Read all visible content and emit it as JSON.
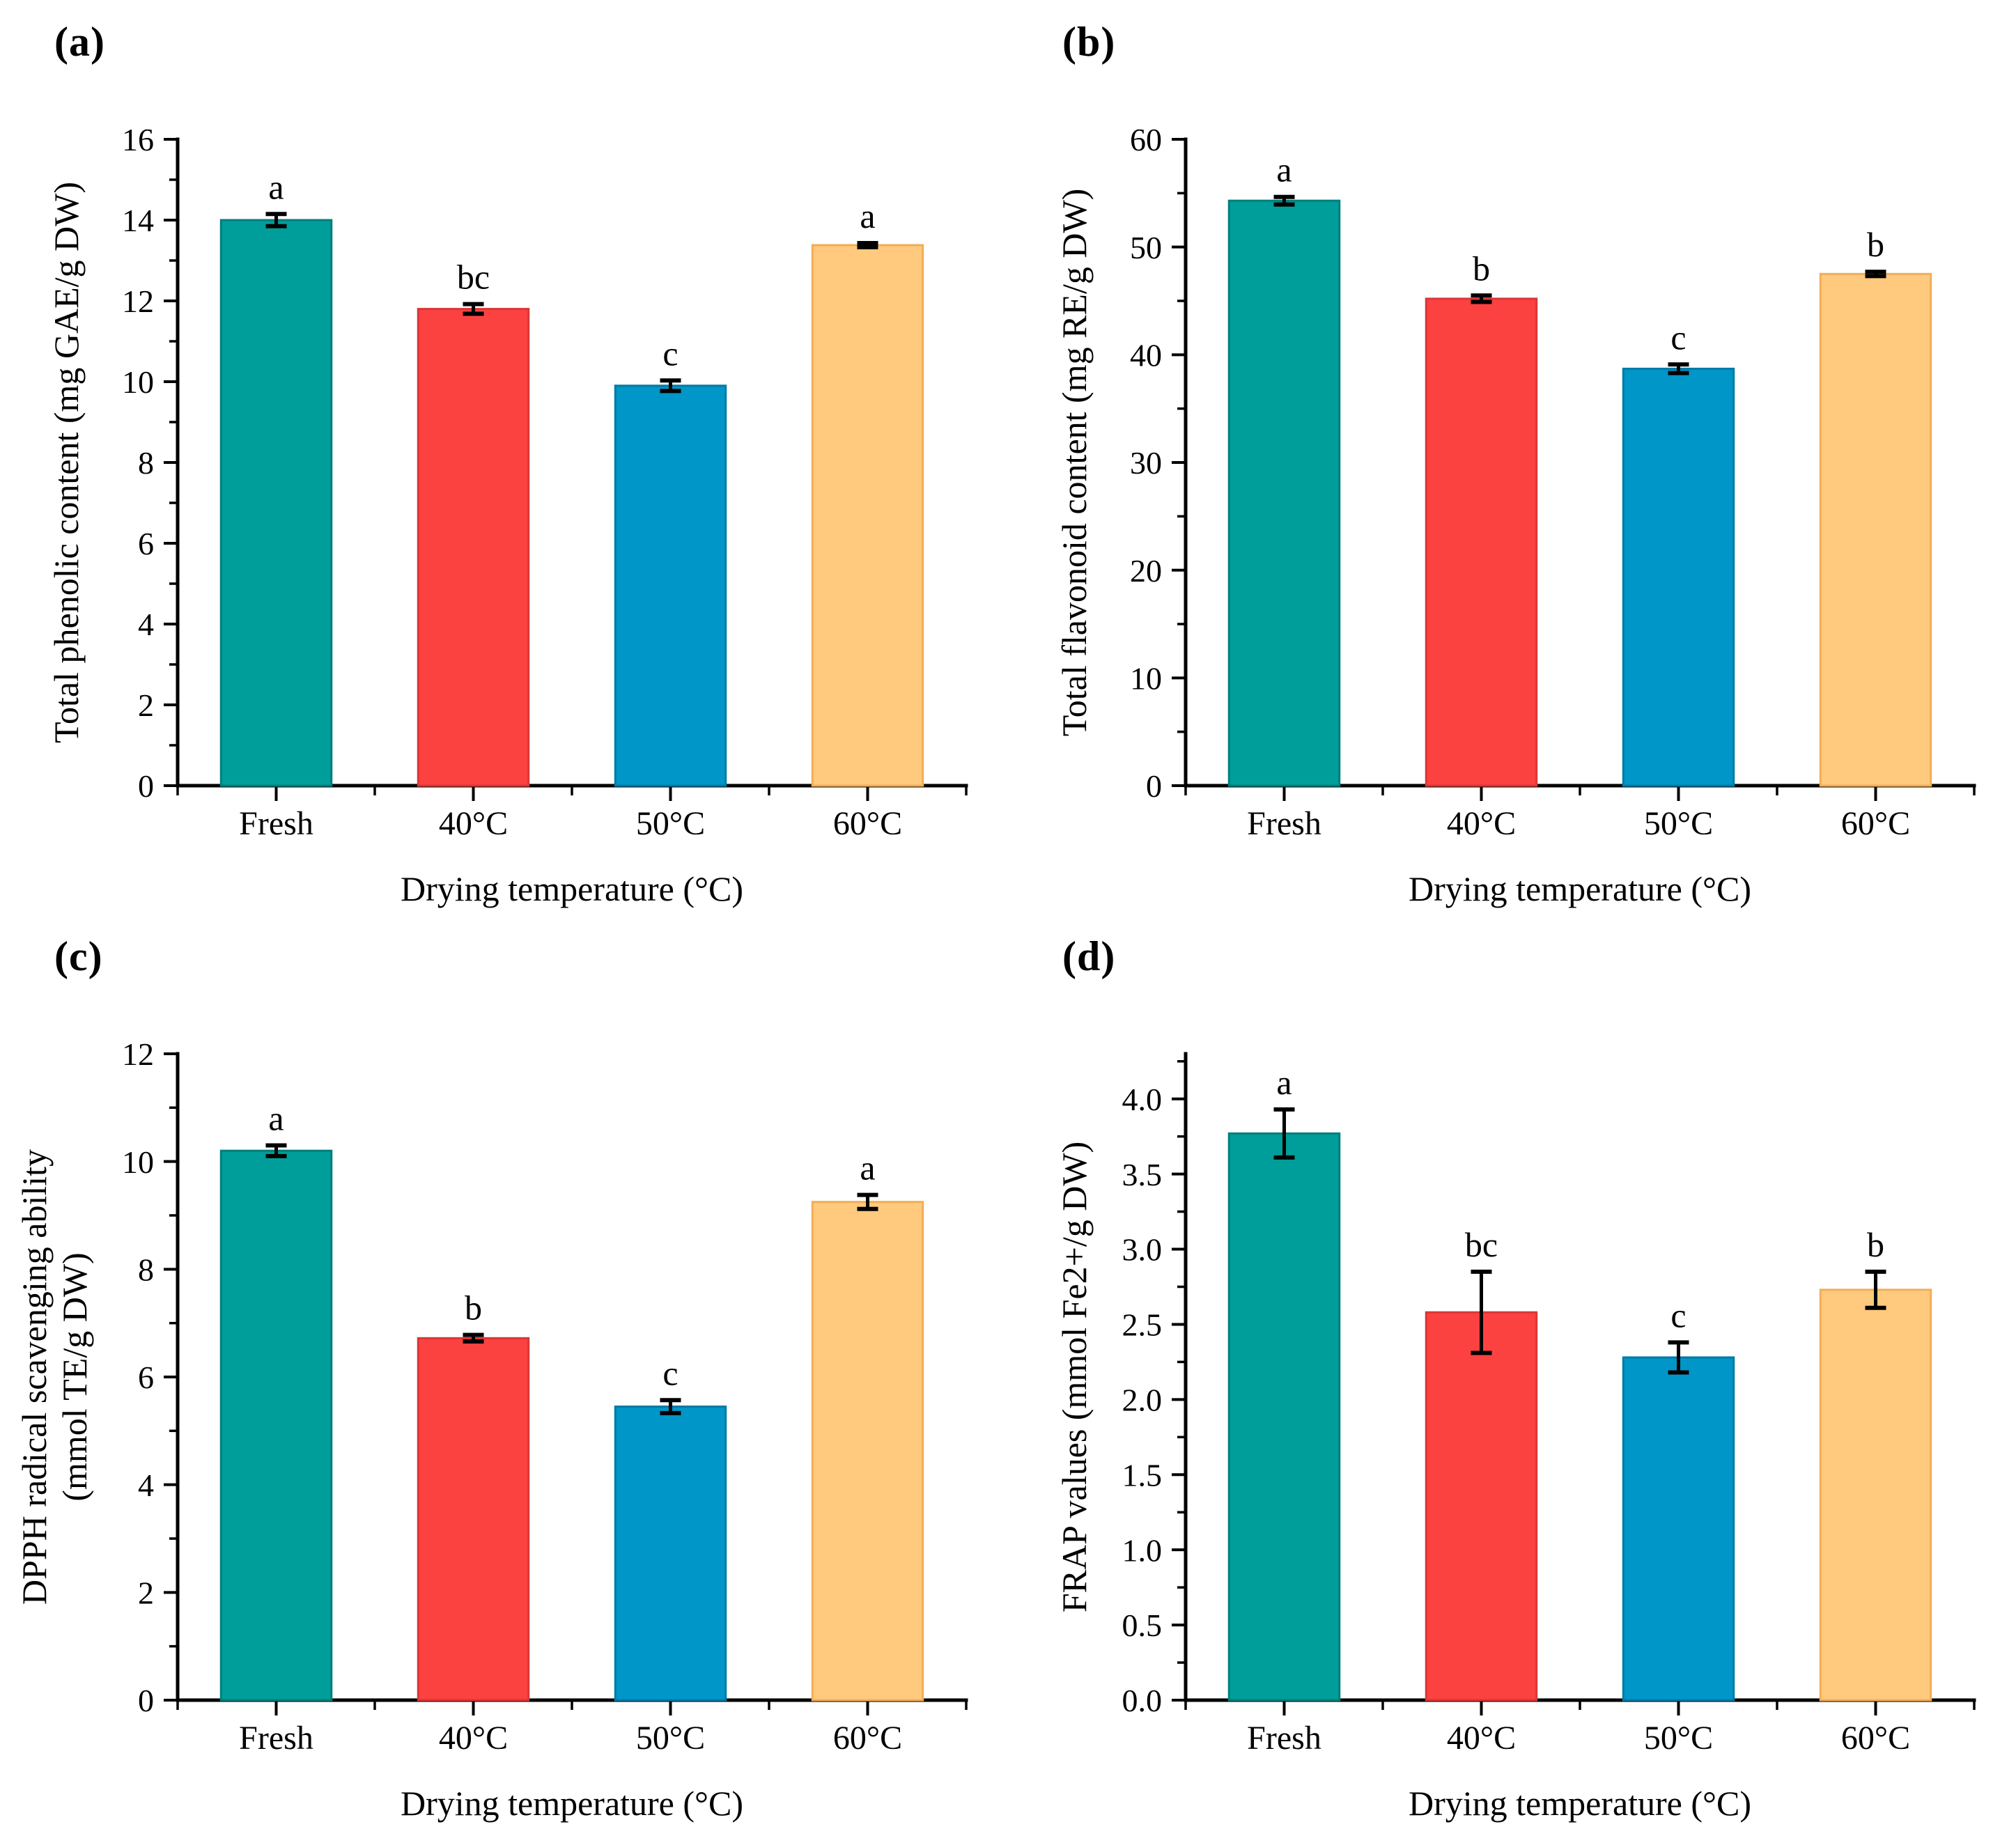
{
  "figure": {
    "background": "#ffffff",
    "xlabel": "Drying temperature (°C)",
    "categories": [
      "Fresh",
      "40°C",
      "50°C",
      "60°C"
    ]
  },
  "colors": {
    "bar_fills": [
      "#009E9A",
      "#FC4141",
      "#0096C8",
      "#FFC97E"
    ],
    "bar_strokes": [
      "#007F7C",
      "#D93636",
      "#007BA6",
      "#F2AE55"
    ],
    "axis": "#000000",
    "error_bar": "#000000"
  },
  "chart_data": [
    {
      "id": "a",
      "tag": "(a)",
      "type": "bar",
      "ylabel_lines": [
        "Total phenolic content (mg GAE/g DW)"
      ],
      "xlabel": "Drying temperature (°C)",
      "categories": [
        "Fresh",
        "40°C",
        "50°C",
        "60°C"
      ],
      "values": [
        14.0,
        11.8,
        9.9,
        13.38
      ],
      "errors": [
        0.15,
        0.12,
        0.13,
        0.05
      ],
      "letters": [
        "a",
        "bc",
        "c",
        "a"
      ],
      "ylim": [
        0,
        16
      ],
      "axis_max": 16,
      "ytick_step": 2,
      "y_decimals": 0,
      "grid": false,
      "legend": "none"
    },
    {
      "id": "b",
      "tag": "(b)",
      "type": "bar",
      "ylabel_lines": [
        "Total flavonoid content (mg RE/g DW)"
      ],
      "xlabel": "Drying temperature (°C)",
      "categories": [
        "Fresh",
        "40°C",
        "50°C",
        "60°C"
      ],
      "values": [
        54.3,
        45.2,
        38.7,
        47.5
      ],
      "errors": [
        0.35,
        0.3,
        0.4,
        0.2
      ],
      "letters": [
        "a",
        "b",
        "c",
        "b"
      ],
      "ylim": [
        0,
        60
      ],
      "axis_max": 60,
      "ytick_step": 10,
      "y_decimals": 0,
      "grid": false,
      "legend": "none"
    },
    {
      "id": "c",
      "tag": "(c)",
      "type": "bar",
      "ylabel_lines": [
        "DPPH radical scavenging ability",
        "(mmol TE/g DW)"
      ],
      "xlabel": "Drying temperature (°C)",
      "categories": [
        "Fresh",
        "40°C",
        "50°C",
        "60°C"
      ],
      "values": [
        10.2,
        6.72,
        5.45,
        9.25
      ],
      "errors": [
        0.1,
        0.06,
        0.12,
        0.13
      ],
      "letters": [
        "a",
        "b",
        "c",
        "a"
      ],
      "ylim": [
        0,
        12
      ],
      "axis_max": 12,
      "ytick_step": 2,
      "y_decimals": 0,
      "grid": false,
      "legend": "none"
    },
    {
      "id": "d",
      "tag": "(d)",
      "type": "bar",
      "ylabel_lines": [
        "FRAP values (mmol Fe2+/g DW)"
      ],
      "xlabel": "Drying temperature (°C)",
      "categories": [
        "Fresh",
        "40°C",
        "50°C",
        "60°C"
      ],
      "values": [
        3.77,
        2.58,
        2.28,
        2.73
      ],
      "errors": [
        0.16,
        0.27,
        0.1,
        0.12
      ],
      "letters": [
        "a",
        "bc",
        "c",
        "b"
      ],
      "ylim": [
        0,
        4.3
      ],
      "axis_max": 4.3,
      "ytick_max_label": 4.0,
      "ytick_step": 0.5,
      "y_decimals": 1,
      "grid": false,
      "legend": "none"
    }
  ]
}
